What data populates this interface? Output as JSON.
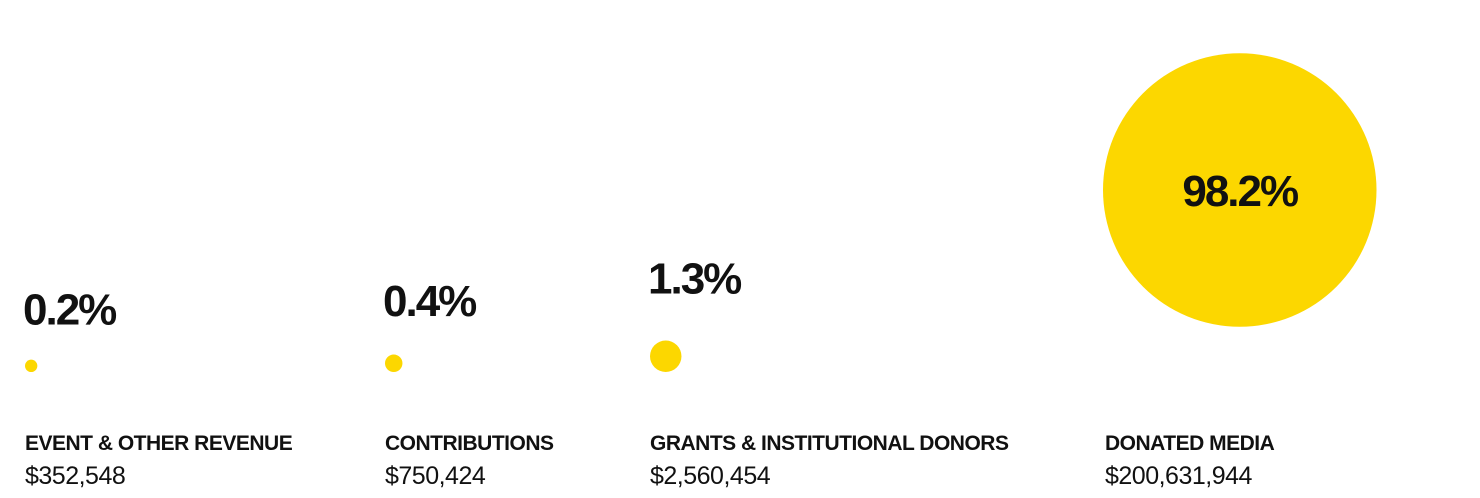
{
  "chart_data": {
    "type": "bubble",
    "categories": [
      "EVENT & OTHER REVENUE",
      "CONTRIBUTIONS",
      "GRANTS & INSTITUTIONAL DONORS",
      "DONATED MEDIA"
    ],
    "values": [
      0.2,
      0.4,
      1.3,
      98.2
    ],
    "value_labels": [
      "0.2%",
      "0.4%",
      "1.3%",
      "98.2%"
    ],
    "amounts": [
      352548,
      750424,
      2560454,
      200631944
    ],
    "amount_labels": [
      "$352,548",
      "$750,424",
      "$2,560,454",
      "$200,631,944"
    ],
    "color": "#fcd700"
  }
}
